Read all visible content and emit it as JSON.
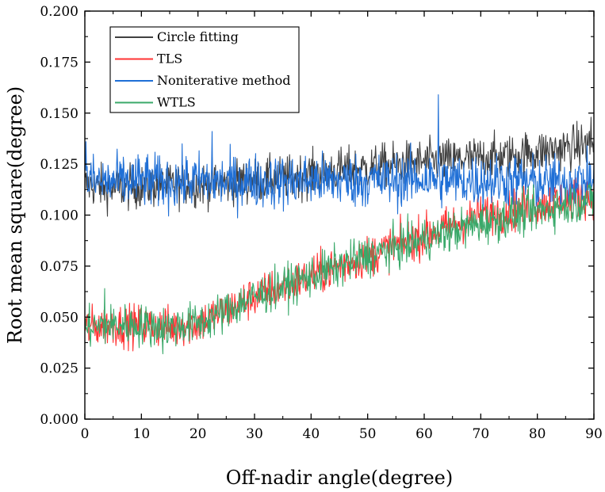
{
  "chart_data": {
    "type": "line",
    "title": "",
    "xlabel": "Off-nadir angle(degree)",
    "ylabel": "Root mean square(degree)",
    "xlim": [
      0,
      90
    ],
    "ylim": [
      0,
      0.2
    ],
    "xticks": [
      "0",
      "10",
      "20",
      "30",
      "40",
      "50",
      "60",
      "70",
      "80",
      "90"
    ],
    "yticks": [
      "0.000",
      "0.025",
      "0.050",
      "0.075",
      "0.100",
      "0.125",
      "0.150",
      "0.175",
      "0.200"
    ],
    "grid": false,
    "legend_position": "top-left",
    "series": [
      {
        "name": "Circle fitting",
        "color": "#404040",
        "x": [
          0,
          5,
          10,
          15,
          20,
          25,
          30,
          35,
          40,
          45,
          50,
          55,
          60,
          65,
          70,
          75,
          80,
          85,
          90
        ],
        "values": [
          0.115,
          0.113,
          0.114,
          0.115,
          0.115,
          0.116,
          0.117,
          0.118,
          0.12,
          0.122,
          0.123,
          0.125,
          0.126,
          0.127,
          0.128,
          0.129,
          0.131,
          0.133,
          0.135
        ]
      },
      {
        "name": "TLS",
        "color": "#ff3333",
        "x": [
          0,
          5,
          10,
          15,
          20,
          25,
          30,
          35,
          40,
          45,
          50,
          55,
          60,
          65,
          70,
          75,
          80,
          85,
          90
        ],
        "values": [
          0.045,
          0.046,
          0.046,
          0.045,
          0.047,
          0.053,
          0.06,
          0.065,
          0.07,
          0.075,
          0.08,
          0.085,
          0.09,
          0.095,
          0.1,
          0.102,
          0.105,
          0.108,
          0.11
        ]
      },
      {
        "name": "Noniterative method",
        "color": "#1f6fd6",
        "x": [
          0,
          5,
          10,
          15,
          20,
          25,
          30,
          35,
          40,
          45,
          50,
          55,
          60,
          65,
          70,
          75,
          80,
          85,
          90
        ],
        "values": [
          0.117,
          0.116,
          0.117,
          0.116,
          0.117,
          0.116,
          0.117,
          0.116,
          0.117,
          0.117,
          0.117,
          0.117,
          0.118,
          0.117,
          0.117,
          0.117,
          0.116,
          0.116,
          0.117
        ]
      },
      {
        "name": "WTLS",
        "color": "#3aa96a",
        "x": [
          0,
          5,
          10,
          15,
          20,
          25,
          30,
          35,
          40,
          45,
          50,
          55,
          60,
          65,
          70,
          75,
          80,
          85,
          90
        ],
        "values": [
          0.045,
          0.046,
          0.046,
          0.045,
          0.047,
          0.053,
          0.06,
          0.065,
          0.07,
          0.075,
          0.08,
          0.084,
          0.088,
          0.092,
          0.096,
          0.099,
          0.102,
          0.105,
          0.108
        ]
      }
    ],
    "spikes": [
      {
        "series": "Noniterative method",
        "x": 62.5,
        "value": 0.159
      },
      {
        "series": "Noniterative method",
        "x": 22.5,
        "value": 0.141
      },
      {
        "series": "Noniterative method",
        "x": 0.2,
        "value": 0.136
      },
      {
        "series": "Circle fitting",
        "x": 89.5,
        "value": 0.148
      },
      {
        "series": "WTLS",
        "x": 3.5,
        "value": 0.064
      },
      {
        "series": "WTLS",
        "x": 13.8,
        "value": 0.032
      }
    ]
  }
}
